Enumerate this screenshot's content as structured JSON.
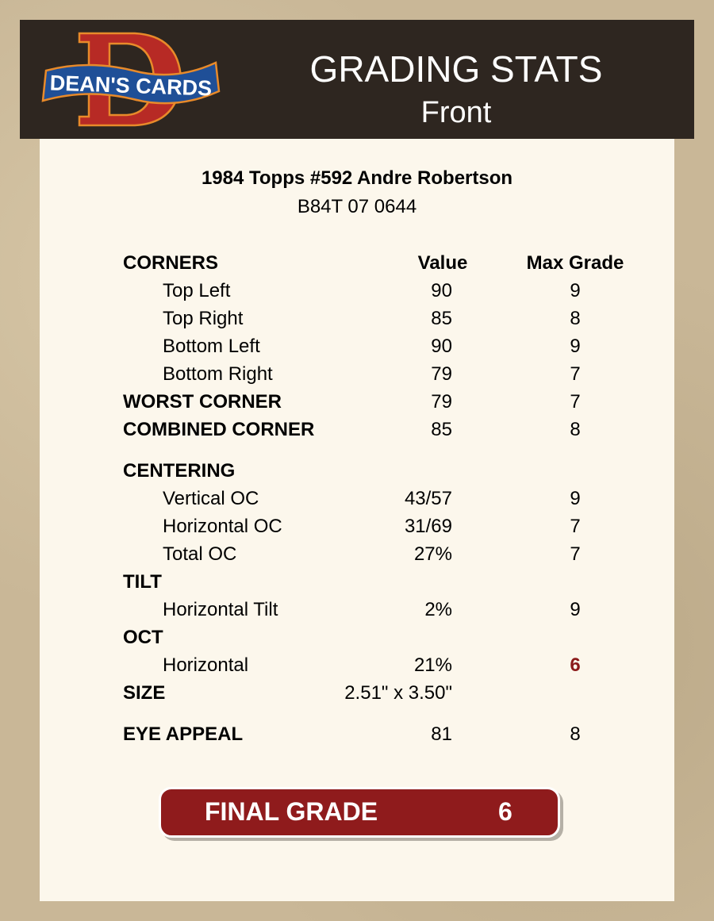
{
  "header": {
    "logo_text": "DEAN'S CARDS",
    "title": "GRADING STATS",
    "subtitle": "Front"
  },
  "card": {
    "title": "1984 Topps #592 Andre Robertson",
    "code": "B84T 07 0644"
  },
  "columns": {
    "value": "Value",
    "max_grade": "Max Grade"
  },
  "rows": [
    {
      "label": "CORNERS",
      "bold": true,
      "header": true
    },
    {
      "label": "Top Left",
      "value": "90",
      "max": "9"
    },
    {
      "label": "Top Right",
      "value": "85",
      "max": "8"
    },
    {
      "label": "Bottom Left",
      "value": "90",
      "max": "9"
    },
    {
      "label": "Bottom Right",
      "value": "79",
      "max": "7"
    },
    {
      "label": "WORST CORNER",
      "bold": true,
      "value": "79",
      "max": "7"
    },
    {
      "label": "COMBINED CORNER",
      "bold": true,
      "value": "85",
      "max": "8"
    },
    {
      "label": "CENTERING",
      "bold": true,
      "gap": true
    },
    {
      "label": "Vertical OC",
      "value": "43/57",
      "max": "9"
    },
    {
      "label": "Horizontal OC",
      "value": "31/69",
      "max": "7"
    },
    {
      "label": "Total OC",
      "value": "27%",
      "max": "7"
    },
    {
      "label": "TILT",
      "bold": true
    },
    {
      "label": "Horizontal Tilt",
      "value": "2%",
      "max": "9"
    },
    {
      "label": "OCT",
      "bold": true
    },
    {
      "label": "Horizontal",
      "value": "21%",
      "max": "6",
      "highlight": true
    },
    {
      "label": "SIZE",
      "bold": true,
      "value": "2.51\" x 3.50\""
    },
    {
      "label": "EYE APPEAL",
      "bold": true,
      "gap": true,
      "value": "81",
      "max": "8"
    }
  ],
  "final": {
    "label": "FINAL GRADE",
    "value": "6"
  },
  "colors": {
    "header_bg": "#2e2620",
    "panel_bg": "#fcf7ec",
    "final_bg": "#8f1b1c",
    "highlight": "#8b1a1a"
  }
}
